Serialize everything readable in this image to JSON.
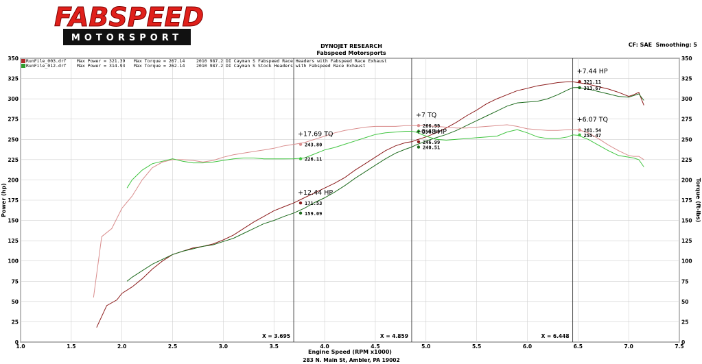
{
  "logo": {
    "brand": "FABSPEED",
    "sub": "MOTORSPORT"
  },
  "header": {
    "title": "DYNOJET RESEARCH",
    "subtitle": "Fabspeed Motorsports",
    "settings": "CF: SAE  Smoothing: 5"
  },
  "legend": [
    {
      "file": "RunFile_003.drf",
      "max_power": "Max Power = 321.39",
      "max_torque": "Max Torque = 267.14",
      "desc": "2010 987.2 DI Cayman S Fabspeed Race Headers with Fabspeed Race Exhaust",
      "color": "#b02a2a"
    },
    {
      "file": "RunFile_012.drf",
      "max_power": "Max Power = 314.93",
      "max_torque": "Max Torque = 262.14",
      "desc": "2010 987.2 DI Cayman S Stock Headers with Fabspeed Race Exhaust",
      "color": "#2f9e2f"
    }
  ],
  "footer": "283 N. Main St, Ambler, PA 19002",
  "colors": {
    "run1_power": "#8b1a1a",
    "run1_torque": "#d98c8c",
    "run2_power": "#1e6b1e",
    "run2_torque": "#3fc43f",
    "logo_red": "#e0201b"
  },
  "chart_data": {
    "type": "line",
    "xlabel": "Engine Speed (RPM x1000)",
    "ylabel_left": "Power (hp)",
    "ylabel_right": "Torque (ft-lbs)",
    "xlim": [
      1.0,
      7.5
    ],
    "ylim": [
      0,
      350
    ],
    "x_ticks": [
      "1.0",
      "1.5",
      "2.0",
      "2.5",
      "3.0",
      "3.5",
      "4.0",
      "4.5",
      "5.0",
      "5.5",
      "6.0",
      "6.5",
      "7.0",
      "7.5"
    ],
    "y_ticks": [
      "0",
      "25",
      "50",
      "75",
      "100",
      "125",
      "150",
      "175",
      "200",
      "225",
      "250",
      "275",
      "300",
      "325",
      "350"
    ],
    "grid": true,
    "series": [
      {
        "name": "RunFile_003.drf",
        "kind": "power",
        "x": [
          1.75,
          1.85,
          1.95,
          2.0,
          2.1,
          2.2,
          2.3,
          2.4,
          2.5,
          2.6,
          2.7,
          2.8,
          2.9,
          3.0,
          3.1,
          3.2,
          3.3,
          3.4,
          3.5,
          3.6,
          3.695,
          3.8,
          3.9,
          4.0,
          4.1,
          4.2,
          4.3,
          4.4,
          4.5,
          4.6,
          4.7,
          4.8,
          4.859,
          4.9,
          5.0,
          5.1,
          5.2,
          5.3,
          5.4,
          5.5,
          5.6,
          5.7,
          5.8,
          5.9,
          6.0,
          6.1,
          6.2,
          6.3,
          6.4,
          6.448,
          6.5,
          6.6,
          6.7,
          6.8,
          6.9,
          7.0,
          7.05,
          7.1,
          7.15
        ],
        "y": [
          18,
          45,
          52,
          60,
          68,
          78,
          90,
          100,
          108,
          112,
          116,
          118,
          121,
          126,
          132,
          140,
          148,
          155,
          162,
          167,
          171.5,
          178,
          184,
          190,
          196,
          203,
          212,
          220,
          228,
          236,
          242,
          246,
          247,
          249,
          253,
          258,
          264,
          271,
          279,
          286,
          294,
          300,
          305,
          310,
          313,
          316,
          318,
          320,
          321,
          321.11,
          320,
          318,
          315,
          312,
          308,
          303,
          305,
          308,
          292
        ]
      },
      {
        "name": "RunFile_012.drf",
        "kind": "power",
        "x": [
          2.05,
          2.1,
          2.2,
          2.3,
          2.4,
          2.5,
          2.6,
          2.7,
          2.8,
          2.9,
          3.0,
          3.1,
          3.2,
          3.3,
          3.4,
          3.5,
          3.6,
          3.695,
          3.8,
          3.9,
          4.0,
          4.1,
          4.2,
          4.3,
          4.4,
          4.5,
          4.6,
          4.7,
          4.8,
          4.859,
          4.9,
          5.0,
          5.1,
          5.2,
          5.3,
          5.4,
          5.5,
          5.6,
          5.7,
          5.8,
          5.9,
          6.0,
          6.1,
          6.2,
          6.3,
          6.4,
          6.448,
          6.5,
          6.6,
          6.7,
          6.8,
          6.9,
          7.0,
          7.05,
          7.1,
          7.15
        ],
        "y": [
          75,
          80,
          88,
          96,
          102,
          108,
          112,
          115,
          118,
          120,
          124,
          128,
          134,
          140,
          146,
          150,
          155,
          159.1,
          165,
          172,
          178,
          185,
          193,
          202,
          210,
          218,
          226,
          233,
          238,
          240.5,
          243,
          248,
          252,
          256,
          261,
          267,
          273,
          279,
          285,
          291,
          295,
          296,
          297,
          300,
          305,
          311,
          313.7,
          314,
          312,
          309,
          306,
          303,
          302,
          304,
          306,
          298
        ]
      },
      {
        "name": "RunFile_003.drf",
        "kind": "torque",
        "x": [
          1.72,
          1.8,
          1.9,
          2.0,
          2.1,
          2.2,
          2.3,
          2.4,
          2.5,
          2.6,
          2.7,
          2.8,
          2.9,
          3.0,
          3.1,
          3.2,
          3.3,
          3.4,
          3.5,
          3.6,
          3.695,
          3.8,
          3.9,
          4.0,
          4.1,
          4.2,
          4.3,
          4.4,
          4.5,
          4.6,
          4.7,
          4.8,
          4.859,
          4.9,
          5.0,
          5.1,
          5.2,
          5.3,
          5.4,
          5.5,
          5.6,
          5.7,
          5.8,
          5.9,
          6.0,
          6.1,
          6.2,
          6.3,
          6.4,
          6.448,
          6.5,
          6.6,
          6.7,
          6.8,
          6.9,
          7.0,
          7.05,
          7.1,
          7.15
        ],
        "y": [
          55,
          130,
          140,
          165,
          180,
          200,
          215,
          222,
          225,
          225,
          224,
          222,
          224,
          228,
          231,
          233,
          235,
          237,
          239,
          242,
          243.8,
          246,
          250,
          254,
          258,
          261,
          263,
          265,
          266,
          266,
          266,
          267,
          267,
          267,
          267,
          266,
          265,
          264,
          264,
          265,
          266,
          267,
          268,
          266,
          263,
          262,
          261,
          261,
          262,
          262,
          262,
          258,
          251,
          243,
          236,
          230,
          229,
          229,
          225
        ]
      },
      {
        "name": "RunFile_012.drf",
        "kind": "torque",
        "x": [
          2.05,
          2.1,
          2.2,
          2.3,
          2.4,
          2.5,
          2.6,
          2.7,
          2.8,
          2.9,
          3.0,
          3.1,
          3.2,
          3.3,
          3.4,
          3.5,
          3.6,
          3.695,
          3.8,
          3.9,
          4.0,
          4.1,
          4.2,
          4.3,
          4.4,
          4.5,
          4.6,
          4.7,
          4.8,
          4.859,
          4.9,
          5.0,
          5.1,
          5.2,
          5.3,
          5.4,
          5.5,
          5.6,
          5.7,
          5.8,
          5.9,
          6.0,
          6.1,
          6.2,
          6.3,
          6.4,
          6.448,
          6.5,
          6.6,
          6.7,
          6.8,
          6.9,
          7.0,
          7.05,
          7.1,
          7.15
        ],
        "y": [
          190,
          200,
          212,
          220,
          223,
          226,
          223,
          221,
          221,
          222,
          224,
          226,
          227,
          227,
          226,
          226,
          226,
          226.1,
          227,
          232,
          237,
          240,
          244,
          248,
          252,
          256,
          258,
          259,
          260,
          260,
          259,
          254,
          250,
          249,
          250,
          251,
          252,
          253,
          254,
          259,
          262,
          258,
          253,
          251,
          251,
          253,
          255.5,
          255,
          250,
          243,
          236,
          230,
          228,
          227,
          225,
          216
        ]
      }
    ],
    "deltas": [
      {
        "label": "+12.44 HP",
        "x": 3.695,
        "high": "171.53",
        "low": "159.09"
      },
      {
        "label": "+17.69 TQ",
        "x": 3.695,
        "high": "243.80",
        "low": "226.11"
      },
      {
        "label": "+6.48 HP",
        "x": 4.859,
        "high": "246.99",
        "low": "240.51"
      },
      {
        "label": "+7 TQ",
        "x": 4.859,
        "high": "266.99",
        "low": "259.99"
      },
      {
        "label": "+7.44 HP",
        "x": 6.448,
        "high": "321.11",
        "low": "313.67"
      },
      {
        "label": "+6.07 TQ",
        "x": 6.448,
        "high": "261.54",
        "low": "255.47"
      }
    ],
    "cursors": [
      {
        "label": "X = 3.695",
        "x": 3.695
      },
      {
        "label": "X = 4.859",
        "x": 4.859
      },
      {
        "label": "X = 6.448",
        "x": 6.448
      }
    ]
  }
}
